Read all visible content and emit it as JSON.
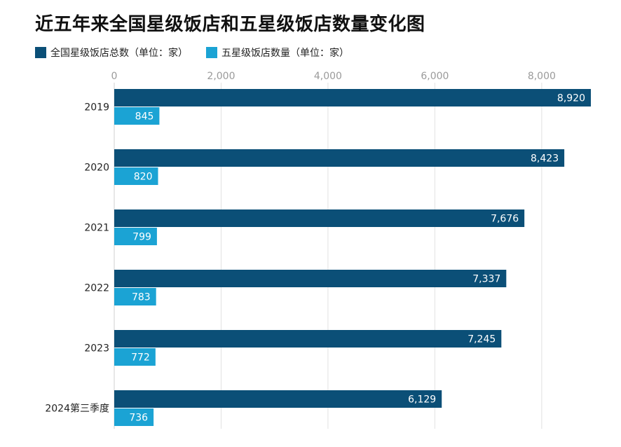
{
  "chart_data": {
    "type": "bar",
    "orientation": "horizontal",
    "title": "近五年来全国星级饭店和五星级饭店数量变化图",
    "categories": [
      "2019",
      "2020",
      "2021",
      "2022",
      "2023",
      "2024第三季度"
    ],
    "series": [
      {
        "name": "全国星级饭店总数（单位：家）",
        "color": "#0b4f77",
        "values": [
          8920,
          8423,
          7676,
          7337,
          7245,
          6129
        ],
        "labels": [
          "8,920",
          "8,423",
          "7,676",
          "7,337",
          "7,245",
          "6,129"
        ]
      },
      {
        "name": "五星级饭店数量（单位：家）",
        "color": "#1ba3d4",
        "values": [
          845,
          820,
          799,
          783,
          772,
          736
        ],
        "labels": [
          "845",
          "820",
          "799",
          "783",
          "772",
          "736"
        ]
      }
    ],
    "xlim": [
      0,
      8920
    ],
    "ticks": [
      0,
      2000,
      4000,
      6000,
      8000
    ],
    "tick_labels": [
      "0",
      "2,000",
      "4,000",
      "6,000",
      "8,000"
    ],
    "grid": true,
    "legend_position": "top-left"
  }
}
